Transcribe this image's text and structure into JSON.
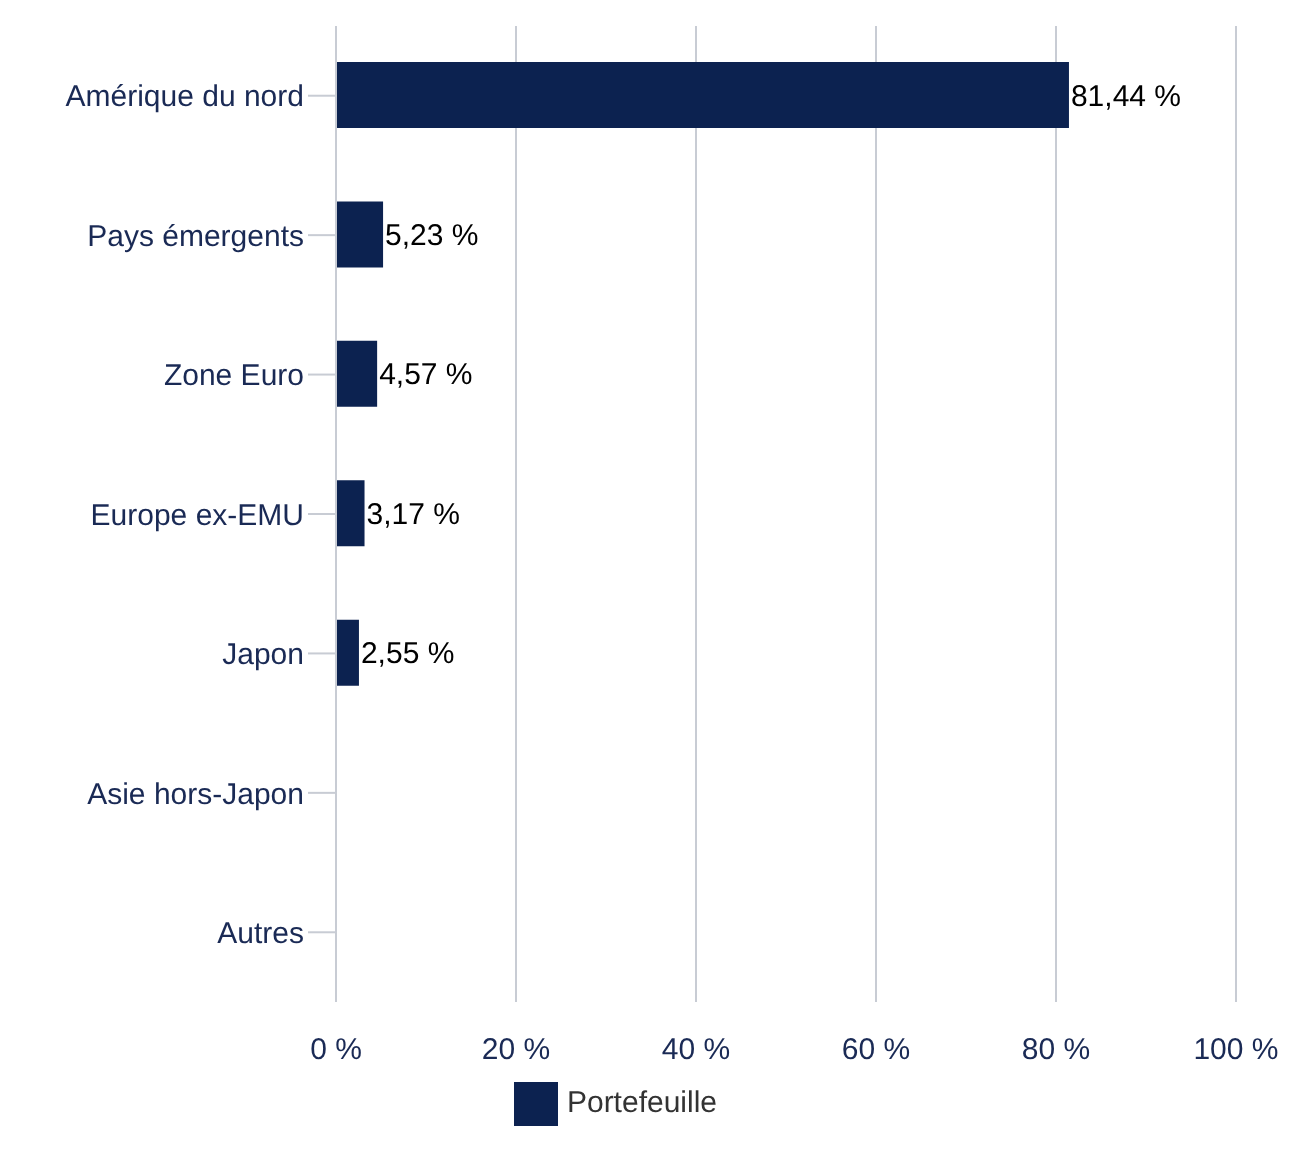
{
  "chart_data": {
    "type": "bar",
    "orientation": "horizontal",
    "categories": [
      "Amérique du nord",
      "Pays émergents",
      "Zone Euro",
      "Europe ex-EMU",
      "Japon",
      "Asie hors-Japon",
      "Autres"
    ],
    "series": [
      {
        "name": "Portefeuille",
        "color": "#0c2250",
        "values": [
          81.44,
          5.23,
          4.57,
          3.17,
          2.55,
          null,
          null
        ],
        "value_labels": [
          "81,44 %",
          "5,23 %",
          "4,57 %",
          "3,17 %",
          "2,55 %",
          null,
          null
        ]
      }
    ],
    "xlim": [
      0,
      100
    ],
    "xticks": [
      {
        "value": 0,
        "label": "0 %"
      },
      {
        "value": 20,
        "label": "20 %"
      },
      {
        "value": 40,
        "label": "40 %"
      },
      {
        "value": 60,
        "label": "60 %"
      },
      {
        "value": 80,
        "label": "80 %"
      },
      {
        "value": 100,
        "label": "100 %"
      }
    ],
    "grid": "x",
    "legend": "bottom"
  }
}
